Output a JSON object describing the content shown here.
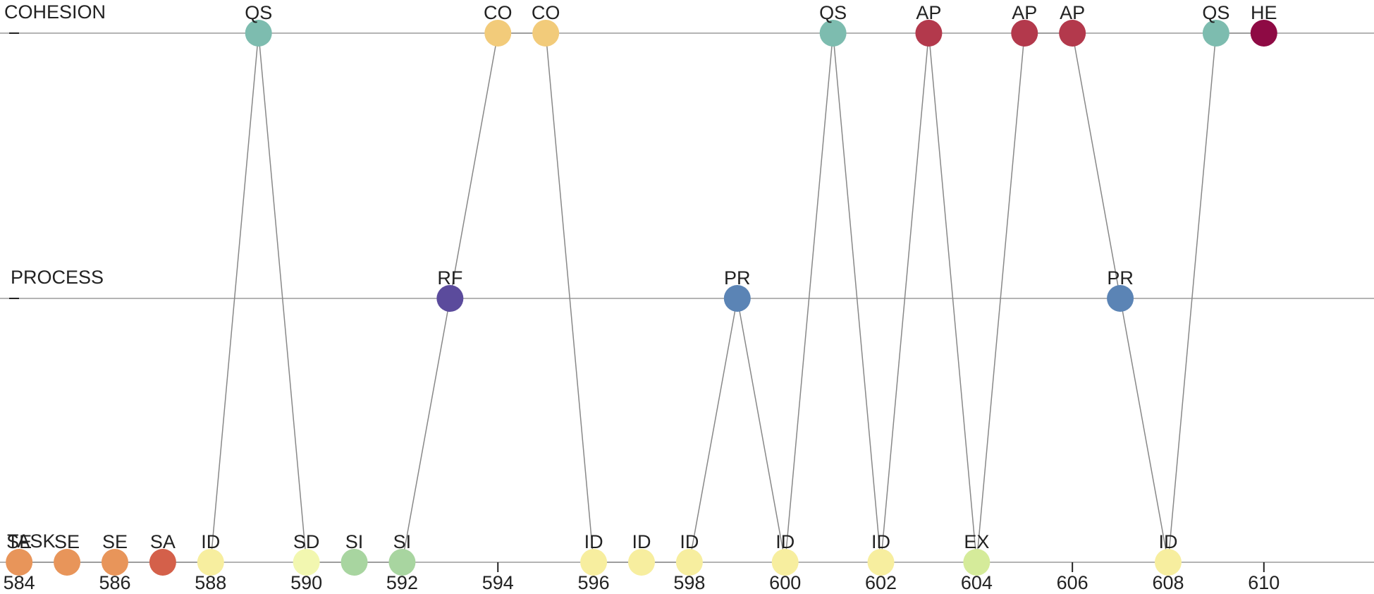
{
  "chart_data": {
    "type": "timeline",
    "lanes": [
      "COHESION",
      "PROCESS",
      "TASK"
    ],
    "x": [
      584,
      585,
      586,
      587,
      588,
      589,
      590,
      591,
      592,
      593,
      594,
      595,
      596,
      597,
      598,
      599,
      600,
      601,
      602,
      603,
      604,
      605,
      606,
      607,
      608,
      609,
      610
    ],
    "lane": [
      "TASK",
      "TASK",
      "TASK",
      "TASK",
      "TASK",
      "COHESION",
      "TASK",
      "TASK",
      "TASK",
      "PROCESS",
      "COHESION",
      "COHESION",
      "TASK",
      "TASK",
      "TASK",
      "PROCESS",
      "TASK",
      "COHESION",
      "TASK",
      "COHESION",
      "TASK",
      "COHESION",
      "COHESION",
      "PROCESS",
      "TASK",
      "COHESION",
      "COHESION"
    ],
    "labels": [
      "SE",
      "SE",
      "SE",
      "SA",
      "ID",
      "QS",
      "SD",
      "SI",
      "SI",
      "RF",
      "CO",
      "CO",
      "ID",
      "ID",
      "ID",
      "PR",
      "ID",
      "QS",
      "ID",
      "AP",
      "EX",
      "AP",
      "AP",
      "PR",
      "ID",
      "QS",
      "HE"
    ],
    "colors": [
      "#e8955a",
      "#e8955a",
      "#e8955a",
      "#d4604a",
      "#f7ee9f",
      "#7dbcaf",
      "#f2f7b0",
      "#a8d5a0",
      "#a8d5a0",
      "#5b4b9c",
      "#f2cb7a",
      "#f2cb7a",
      "#f7ee9f",
      "#f7ee9f",
      "#f7ee9f",
      "#5b84b5",
      "#f7ee9f",
      "#7dbcaf",
      "#f7ee9f",
      "#b3394c",
      "#d5eb9a",
      "#b3394c",
      "#b3394c",
      "#5b84b5",
      "#f7ee9f",
      "#7dbcaf",
      "#8e0a44"
    ],
    "xlim": [
      583.6,
      612.3
    ],
    "xticks": [
      584,
      586,
      588,
      590,
      592,
      594,
      596,
      598,
      600,
      602,
      604,
      606,
      608,
      610
    ]
  }
}
